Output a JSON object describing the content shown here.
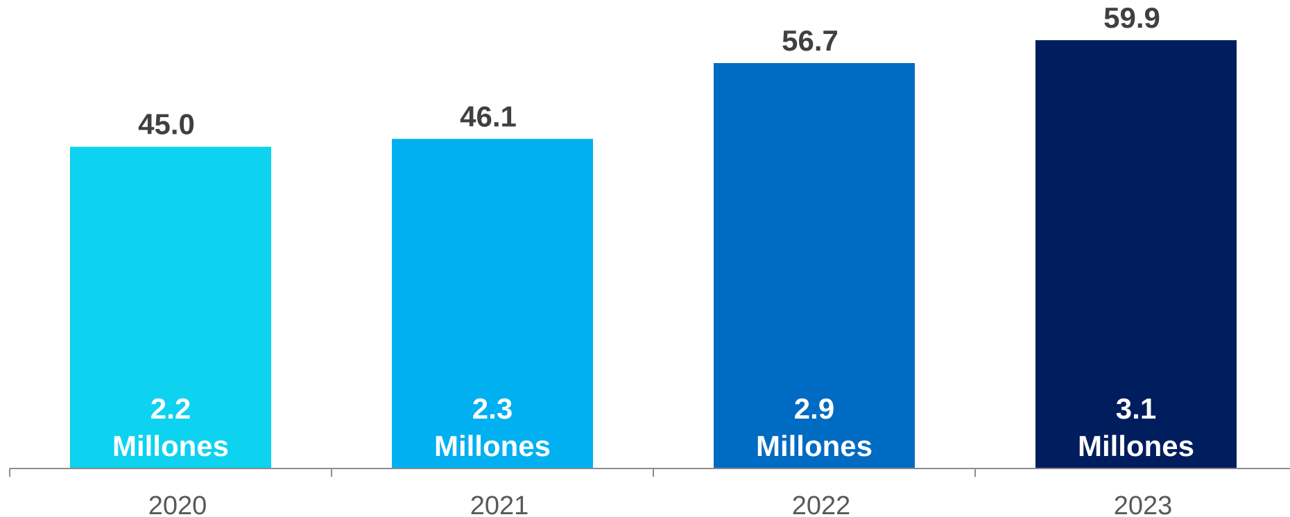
{
  "chart_data": {
    "type": "bar",
    "title": "",
    "xlabel": "",
    "ylabel": "",
    "categories": [
      "2020",
      "2021",
      "2022",
      "2023"
    ],
    "values": [
      45.0,
      46.1,
      56.7,
      59.9
    ],
    "value_labels": [
      "45.0",
      "46.1",
      "56.7",
      "59.9"
    ],
    "inner_labels": [
      {
        "number": "2.2",
        "unit": "Millones"
      },
      {
        "number": "2.3",
        "unit": "Millones"
      },
      {
        "number": "2.9",
        "unit": "Millones"
      },
      {
        "number": "3.1",
        "unit": "Millones"
      }
    ],
    "colors": [
      "#0DD2F0",
      "#00B0F0",
      "#006BC2",
      "#001D5E"
    ],
    "ylim": [
      0,
      62
    ],
    "grid": false,
    "legend": "none"
  }
}
